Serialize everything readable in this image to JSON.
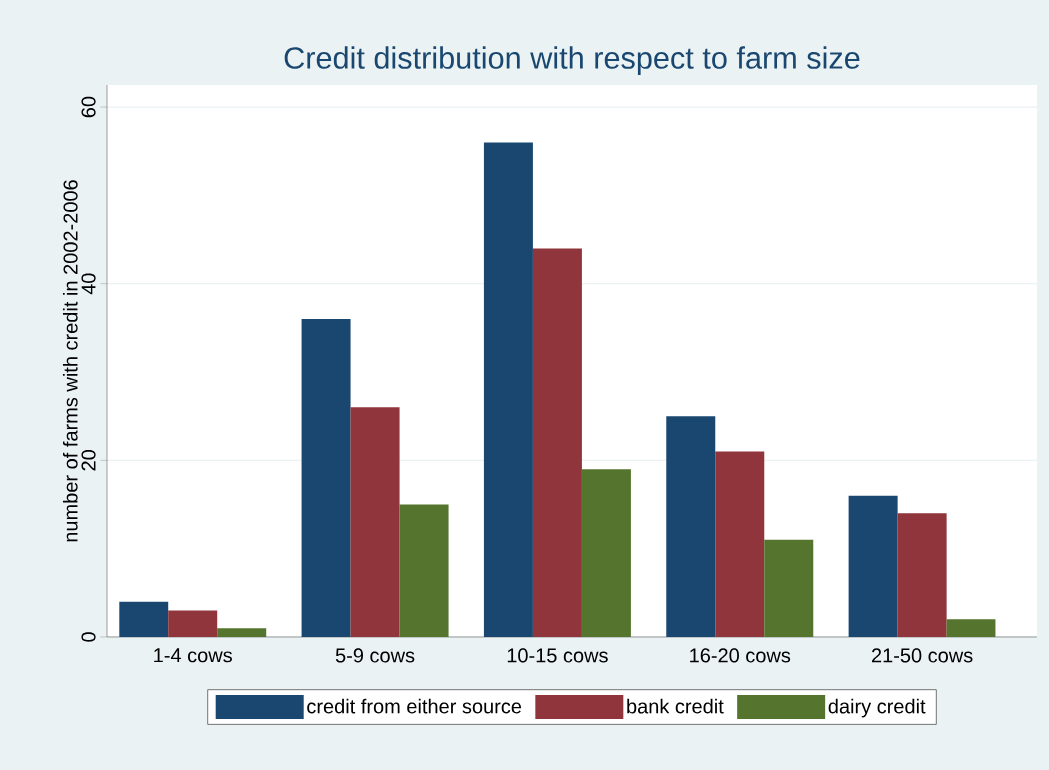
{
  "chart_data": {
    "type": "bar",
    "title": "Credit distribution with respect to farm size",
    "ylabel": "number of farms with credit in 2002-2006",
    "categories": [
      "1-4 cows",
      "5-9 cows",
      "10-15 cows",
      "16-20 cows",
      "21-50 cows"
    ],
    "series": [
      {
        "name": "credit from either source",
        "color": "#1a476f",
        "values": [
          4,
          36,
          56,
          25,
          16
        ]
      },
      {
        "name": "bank credit",
        "color": "#90353b",
        "values": [
          3,
          26,
          44,
          21,
          14
        ]
      },
      {
        "name": "dairy credit",
        "color": "#55752f",
        "values": [
          1,
          15,
          19,
          11,
          2
        ]
      }
    ],
    "ylim": [
      0,
      62.5
    ],
    "yticks": [
      0,
      20,
      40,
      60
    ],
    "grid": "y",
    "legend": "bottom"
  }
}
